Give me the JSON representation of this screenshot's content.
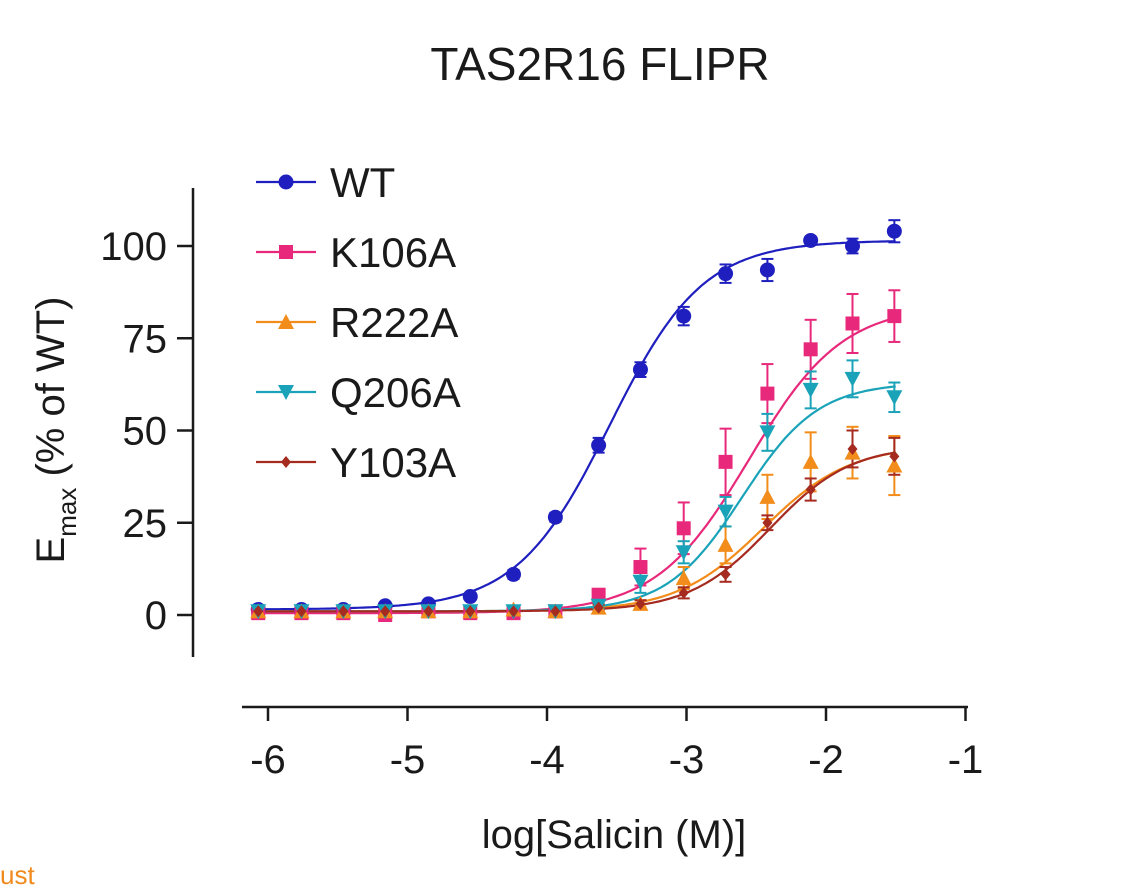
{
  "chart_data": {
    "type": "scatter",
    "title": "TAS2R16 FLIPR",
    "xlabel": "log[Salicin (M)]",
    "ylabel_main": "E",
    "ylabel_sub": "max",
    "ylabel_rest": " (% of WT)",
    "xlim": [
      -6.2,
      -1
    ],
    "ylim": [
      -10,
      115
    ],
    "x_ticks": [
      -6,
      -5,
      -4,
      -3,
      -2,
      -1
    ],
    "x_tick_labels": [
      "-6",
      "-5",
      "-4",
      "-3",
      "-2",
      "-1"
    ],
    "y_ticks": [
      0,
      25,
      50,
      75,
      100
    ],
    "y_tick_labels": [
      "0",
      "25",
      "50",
      "75",
      "100"
    ],
    "legend_position": "top-left",
    "fit_curves": true,
    "series": [
      {
        "name": "WT",
        "color": "#1f1fbf",
        "marker": "circle",
        "x": [
          -6.07,
          -5.76,
          -5.46,
          -5.16,
          -4.85,
          -4.55,
          -4.24,
          -3.94,
          -3.63,
          -3.33,
          -3.02,
          -2.72,
          -2.42,
          -2.11,
          -1.81,
          -1.51
        ],
        "y": [
          1.5,
          1.5,
          1.5,
          2.5,
          3,
          5,
          11,
          26.5,
          46,
          66.5,
          81,
          92.5,
          93.5,
          101.5,
          100,
          104
        ],
        "err": [
          0.5,
          0.5,
          0.5,
          0.5,
          0.5,
          0.8,
          1.2,
          1.2,
          2,
          2,
          2.5,
          2.5,
          3,
          1,
          2,
          3
        ],
        "fit": {
          "bottom": 1.5,
          "top": 101.5,
          "logEC50": -3.55,
          "hill": 1.3
        }
      },
      {
        "name": "K106A",
        "color": "#e8287a",
        "marker": "square",
        "x": [
          -6.07,
          -5.76,
          -5.46,
          -5.16,
          -4.85,
          -4.55,
          -4.24,
          -3.94,
          -3.63,
          -3.33,
          -3.02,
          -2.72,
          -2.42,
          -2.11,
          -1.81,
          -1.51
        ],
        "y": [
          0.5,
          0.5,
          0.5,
          0,
          1,
          0.5,
          0.5,
          1,
          5.5,
          13,
          23.5,
          41.5,
          60,
          72,
          79,
          81
        ],
        "err": [
          0.5,
          0.5,
          0.5,
          0.5,
          0.5,
          0.5,
          0.5,
          0.8,
          1.5,
          5,
          7,
          9,
          8,
          8,
          8,
          7
        ],
        "fit": {
          "bottom": 0.5,
          "top": 84,
          "logEC50": -2.55,
          "hill": 1.3
        }
      },
      {
        "name": "R222A",
        "color": "#f28c1a",
        "marker": "triangle-up",
        "x": [
          -6.07,
          -5.76,
          -5.46,
          -5.16,
          -4.85,
          -4.55,
          -4.24,
          -3.94,
          -3.63,
          -3.33,
          -3.02,
          -2.72,
          -2.42,
          -2.11,
          -1.81,
          -1.51
        ],
        "y": [
          1,
          1,
          1,
          1,
          1,
          1,
          1.5,
          1,
          2,
          3,
          10,
          19,
          32,
          41.5,
          44,
          40.5
        ],
        "err": [
          0.5,
          0.5,
          0.5,
          0.5,
          0.5,
          0.5,
          0.5,
          0.5,
          0.8,
          1,
          3,
          5,
          6,
          8,
          7,
          8
        ],
        "fit": {
          "bottom": 1,
          "top": 46,
          "logEC50": -2.45,
          "hill": 1.4
        }
      },
      {
        "name": "Q206A",
        "color": "#1aa3b8",
        "marker": "triangle-down",
        "x": [
          -6.07,
          -5.76,
          -5.46,
          -5.16,
          -4.85,
          -4.55,
          -4.24,
          -3.94,
          -3.63,
          -3.33,
          -3.02,
          -2.72,
          -2.42,
          -2.11,
          -1.81,
          -1.51
        ],
        "y": [
          1,
          1,
          1,
          1,
          1,
          1,
          1,
          1,
          2.5,
          9,
          17,
          28,
          49.5,
          61,
          64,
          59
        ],
        "err": [
          0.5,
          0.5,
          0.5,
          0.5,
          0.5,
          0.5,
          0.5,
          0.5,
          0.8,
          3,
          3,
          4,
          5,
          5,
          5,
          4
        ],
        "fit": {
          "bottom": 1,
          "top": 63,
          "logEC50": -2.6,
          "hill": 1.6
        }
      },
      {
        "name": "Y103A",
        "color": "#a52a1f",
        "marker": "diamond",
        "x": [
          -6.07,
          -5.76,
          -5.46,
          -5.16,
          -4.85,
          -4.55,
          -4.24,
          -3.94,
          -3.63,
          -3.33,
          -3.02,
          -2.72,
          -2.42,
          -2.11,
          -1.81,
          -1.51
        ],
        "y": [
          1,
          1,
          1,
          1,
          1,
          1,
          1,
          1,
          2,
          3,
          6,
          11,
          25,
          34,
          45,
          43
        ],
        "err": [
          0.5,
          0.5,
          0.5,
          0.5,
          0.5,
          0.5,
          0.5,
          0.5,
          0.8,
          1,
          1.5,
          2,
          2,
          3,
          5,
          5
        ],
        "fit": {
          "bottom": 1,
          "top": 46,
          "logEC50": -2.4,
          "hill": 1.5
        }
      }
    ]
  },
  "footer_fragment": "ust"
}
